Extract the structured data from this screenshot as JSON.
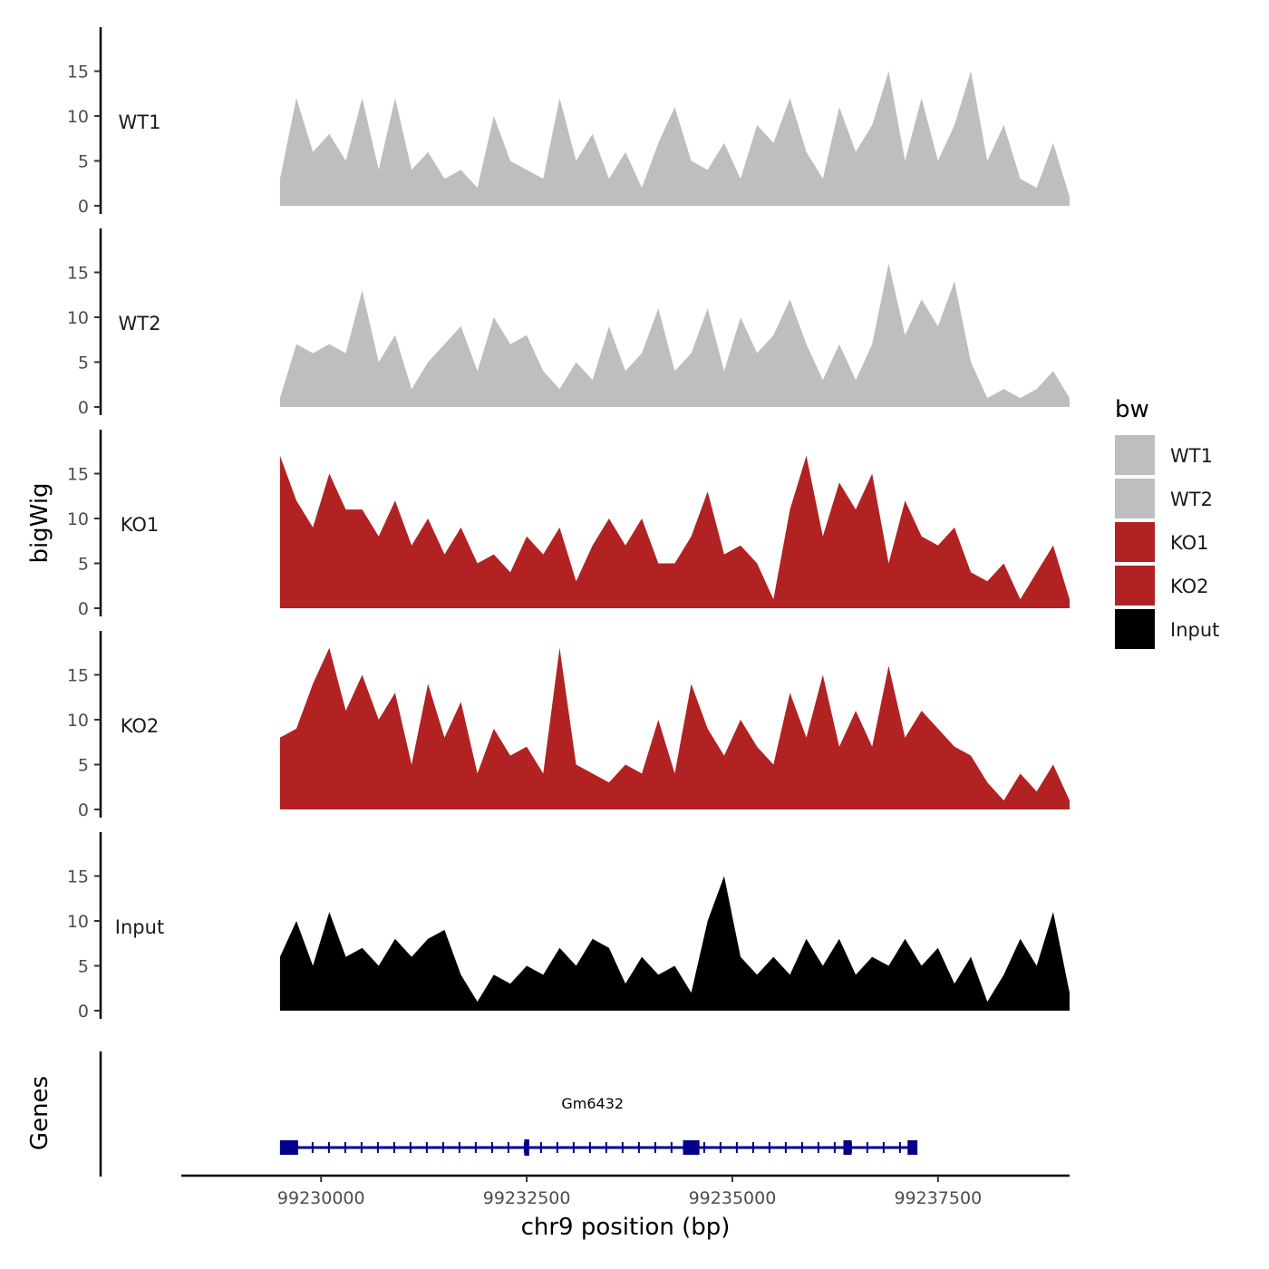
{
  "chart_data": {
    "type": "area",
    "title": "",
    "xlabel": "chr9 position (bp)",
    "ylabel": "bigWig",
    "genes_label": "Genes",
    "xlim": [
      99228300,
      99239100
    ],
    "ylim": [
      0,
      20
    ],
    "yticks": [
      0,
      5,
      10,
      15
    ],
    "xticks": [
      99230000,
      99232500,
      99235000,
      99237500
    ],
    "xtick_labels": [
      "99230000",
      "99232500",
      "99235000",
      "99237500"
    ],
    "legend": {
      "title": "bw",
      "entries": [
        {
          "label": "WT1",
          "color": "#bebebe"
        },
        {
          "label": "WT2",
          "color": "#bebebe"
        },
        {
          "label": "KO1",
          "color": "#b22222"
        },
        {
          "label": "KO2",
          "color": "#b22222"
        },
        {
          "label": "Input",
          "color": "#000000"
        }
      ]
    },
    "tracks": [
      {
        "name": "WT1",
        "color": "#bebebe",
        "x": [
          99229500,
          99229700,
          99229900,
          99230100,
          99230300,
          99230500,
          99230700,
          99230900,
          99231100,
          99231300,
          99231500,
          99231700,
          99231900,
          99232100,
          99232300,
          99232500,
          99232700,
          99232900,
          99233100,
          99233300,
          99233500,
          99233700,
          99233900,
          99234100,
          99234300,
          99234500,
          99234700,
          99234900,
          99235100,
          99235300,
          99235500,
          99235700,
          99235900,
          99236100,
          99236300,
          99236500,
          99236700,
          99236900,
          99237100,
          99237300,
          99237500,
          99237700,
          99237900,
          99238100,
          99238300,
          99238500,
          99238700,
          99238900,
          99239100
        ],
        "values": [
          3,
          12,
          6,
          8,
          5,
          12,
          4,
          12,
          4,
          6,
          3,
          4,
          2,
          10,
          5,
          4,
          3,
          12,
          5,
          8,
          3,
          6,
          2,
          7,
          11,
          5,
          4,
          7,
          3,
          9,
          7,
          12,
          6,
          3,
          11,
          6,
          9,
          15,
          5,
          12,
          5,
          9,
          15,
          5,
          9,
          3,
          2,
          7,
          1
        ]
      },
      {
        "name": "WT2",
        "color": "#bebebe",
        "x": [
          99229500,
          99229700,
          99229900,
          99230100,
          99230300,
          99230500,
          99230700,
          99230900,
          99231100,
          99231300,
          99231500,
          99231700,
          99231900,
          99232100,
          99232300,
          99232500,
          99232700,
          99232900,
          99233100,
          99233300,
          99233500,
          99233700,
          99233900,
          99234100,
          99234300,
          99234500,
          99234700,
          99234900,
          99235100,
          99235300,
          99235500,
          99235700,
          99235900,
          99236100,
          99236300,
          99236500,
          99236700,
          99236900,
          99237100,
          99237300,
          99237500,
          99237700,
          99237900,
          99238100,
          99238300,
          99238500,
          99238700,
          99238900,
          99239100
        ],
        "values": [
          1,
          7,
          6,
          7,
          6,
          13,
          5,
          8,
          2,
          5,
          7,
          9,
          4,
          10,
          7,
          8,
          4,
          2,
          5,
          3,
          9,
          4,
          6,
          11,
          4,
          6,
          11,
          4,
          10,
          6,
          8,
          12,
          7,
          3,
          7,
          3,
          7,
          16,
          8,
          12,
          9,
          14,
          5,
          1,
          2,
          1,
          2,
          4,
          1
        ]
      },
      {
        "name": "KO1",
        "color": "#b22222",
        "x": [
          99229500,
          99229700,
          99229900,
          99230100,
          99230300,
          99230500,
          99230700,
          99230900,
          99231100,
          99231300,
          99231500,
          99231700,
          99231900,
          99232100,
          99232300,
          99232500,
          99232700,
          99232900,
          99233100,
          99233300,
          99233500,
          99233700,
          99233900,
          99234100,
          99234300,
          99234500,
          99234700,
          99234900,
          99235100,
          99235300,
          99235500,
          99235700,
          99235900,
          99236100,
          99236300,
          99236500,
          99236700,
          99236900,
          99237100,
          99237300,
          99237500,
          99237700,
          99237900,
          99238100,
          99238300,
          99238500,
          99238700,
          99238900,
          99239100
        ],
        "values": [
          17,
          12,
          9,
          15,
          11,
          11,
          8,
          12,
          7,
          10,
          6,
          9,
          5,
          6,
          4,
          8,
          6,
          9,
          3,
          7,
          10,
          7,
          10,
          5,
          5,
          8,
          13,
          6,
          7,
          5,
          1,
          11,
          17,
          8,
          14,
          11,
          15,
          5,
          12,
          8,
          7,
          9,
          4,
          3,
          5,
          1,
          4,
          7,
          1
        ]
      },
      {
        "name": "KO2",
        "color": "#b22222",
        "x": [
          99229500,
          99229700,
          99229900,
          99230100,
          99230300,
          99230500,
          99230700,
          99230900,
          99231100,
          99231300,
          99231500,
          99231700,
          99231900,
          99232100,
          99232300,
          99232500,
          99232700,
          99232900,
          99233100,
          99233300,
          99233500,
          99233700,
          99233900,
          99234100,
          99234300,
          99234500,
          99234700,
          99234900,
          99235100,
          99235300,
          99235500,
          99235700,
          99235900,
          99236100,
          99236300,
          99236500,
          99236700,
          99236900,
          99237100,
          99237300,
          99237500,
          99237700,
          99237900,
          99238100,
          99238300,
          99238500,
          99238700,
          99238900,
          99239100
        ],
        "values": [
          8,
          9,
          14,
          18,
          11,
          15,
          10,
          13,
          5,
          14,
          8,
          12,
          4,
          9,
          6,
          7,
          4,
          18,
          5,
          4,
          3,
          5,
          4,
          10,
          4,
          14,
          9,
          6,
          10,
          7,
          5,
          13,
          8,
          15,
          7,
          11,
          7,
          16,
          8,
          11,
          9,
          7,
          6,
          3,
          1,
          4,
          2,
          5,
          1
        ]
      },
      {
        "name": "Input",
        "color": "#000000",
        "x": [
          99229500,
          99229700,
          99229900,
          99230100,
          99230300,
          99230500,
          99230700,
          99230900,
          99231100,
          99231300,
          99231500,
          99231700,
          99231900,
          99232100,
          99232300,
          99232500,
          99232700,
          99232900,
          99233100,
          99233300,
          99233500,
          99233700,
          99233900,
          99234100,
          99234300,
          99234500,
          99234700,
          99234900,
          99235100,
          99235300,
          99235500,
          99235700,
          99235900,
          99236100,
          99236300,
          99236500,
          99236700,
          99236900,
          99237100,
          99237300,
          99237500,
          99237700,
          99237900,
          99238100,
          99238300,
          99238500,
          99238700,
          99238900,
          99239100
        ],
        "values": [
          6,
          10,
          5,
          11,
          6,
          7,
          5,
          8,
          6,
          8,
          9,
          4,
          1,
          4,
          3,
          5,
          4,
          7,
          5,
          8,
          7,
          3,
          6,
          4,
          5,
          2,
          10,
          15,
          6,
          4,
          6,
          4,
          8,
          5,
          8,
          4,
          6,
          5,
          8,
          5,
          7,
          3,
          6,
          1,
          4,
          8,
          5,
          11,
          2
        ]
      }
    ],
    "genes": [
      {
        "name": "Gm6432",
        "start": 99229500,
        "end": 99237250,
        "strand": "-",
        "exons": [
          [
            99229500,
            99229720
          ],
          [
            99232470,
            99232530
          ],
          [
            99234400,
            99234600
          ],
          [
            99236350,
            99236450
          ],
          [
            99237130,
            99237250
          ]
        ]
      }
    ]
  }
}
